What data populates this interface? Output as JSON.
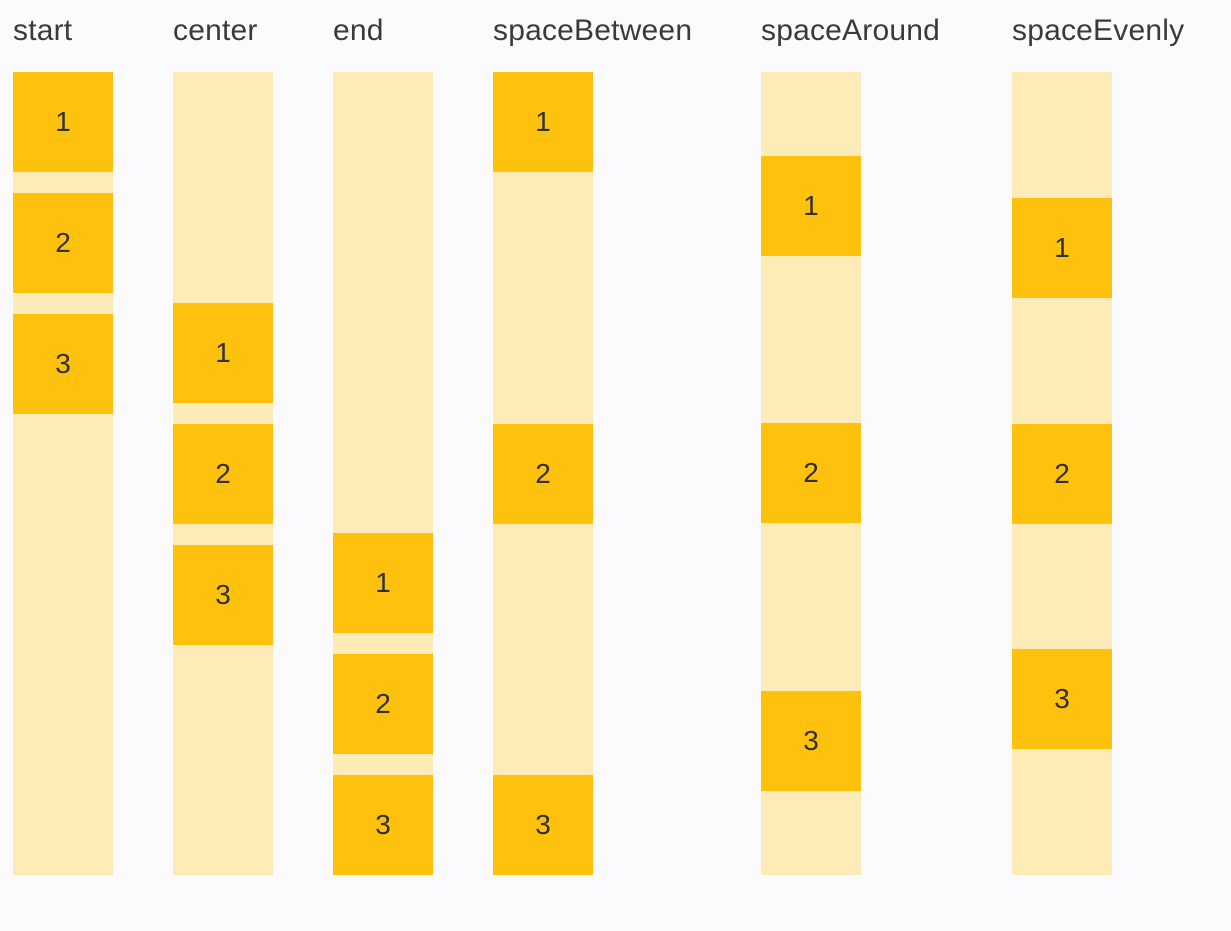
{
  "page": {
    "background_color": "#FBFBFE",
    "description_colors": {
      "track_fill": "#FDEBB8",
      "item_fill": "#FEC10D",
      "label_text": "#3A3A3A",
      "item_text": "#303030"
    }
  },
  "columns": [
    {
      "label": "start",
      "items": [
        "1",
        "2",
        "3"
      ]
    },
    {
      "label": "center",
      "items": [
        "1",
        "2",
        "3"
      ]
    },
    {
      "label": "end",
      "items": [
        "1",
        "2",
        "3"
      ]
    },
    {
      "label": "spaceBetween",
      "items": [
        "1",
        "2",
        "3"
      ]
    },
    {
      "label": "spaceAround",
      "items": [
        "1",
        "2",
        "3"
      ]
    },
    {
      "label": "spaceEvenly",
      "items": [
        "1",
        "2",
        "3"
      ]
    }
  ]
}
